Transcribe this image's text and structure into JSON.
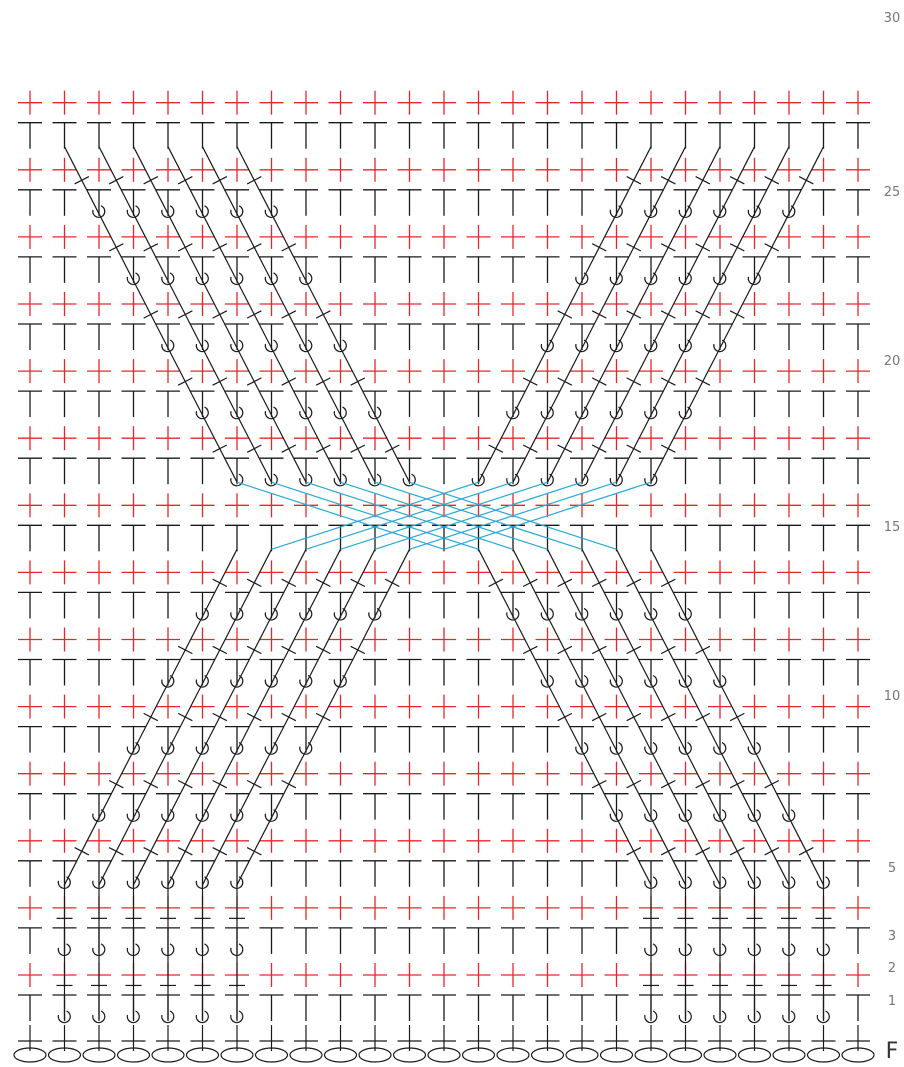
{
  "diagram": {
    "type": "crochet-stitch-chart",
    "stitch_columns": 25,
    "foundation_label": "F",
    "row_labels": [
      "1",
      "2",
      "3",
      "5",
      "10",
      "15",
      "20",
      "25",
      "30"
    ],
    "colors": {
      "double_crochet_symbol": "#1a1a1a",
      "single_crochet_cross": "#e8262a",
      "crossed_post_stitches_highlight": "#29a8d6",
      "row_label_text": "#777777",
      "foundation_chain": "#1a1a1a"
    },
    "legend_note": "Two diagonal cables of front-post stitches (left and right groups of 6) traveling from rows 1 to 30, crossing between rows 16 and 18; the crossing strands are highlighted in blue."
  }
}
